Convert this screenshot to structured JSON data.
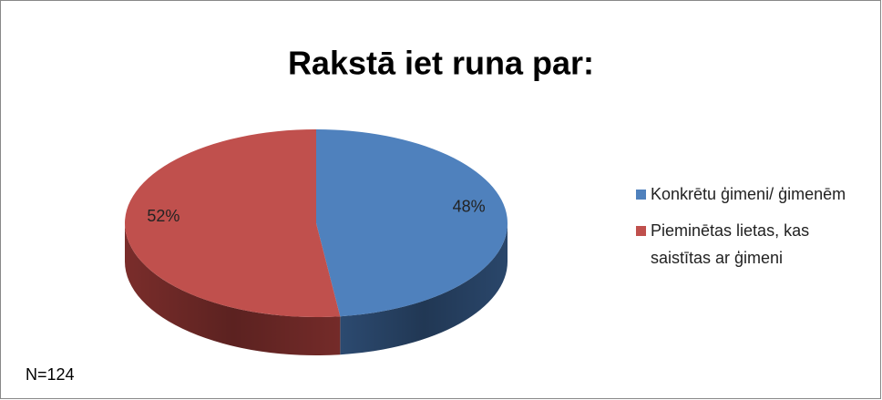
{
  "chart_data": {
    "type": "pie3d",
    "title": "Rakstā iet runa par:",
    "categories": [
      "Konkrētu ģimeni/ ģimenēm",
      "Pieminētas lietas, kas saistītas ar ģimeni"
    ],
    "values": [
      48,
      52
    ],
    "value_labels": [
      "48%",
      "52%"
    ],
    "colors": [
      "#4f81bd",
      "#c0504d"
    ],
    "side_colors": [
      "#2c4a70",
      "#7a2d2b"
    ],
    "legend": "right",
    "annotation": "N=124"
  }
}
